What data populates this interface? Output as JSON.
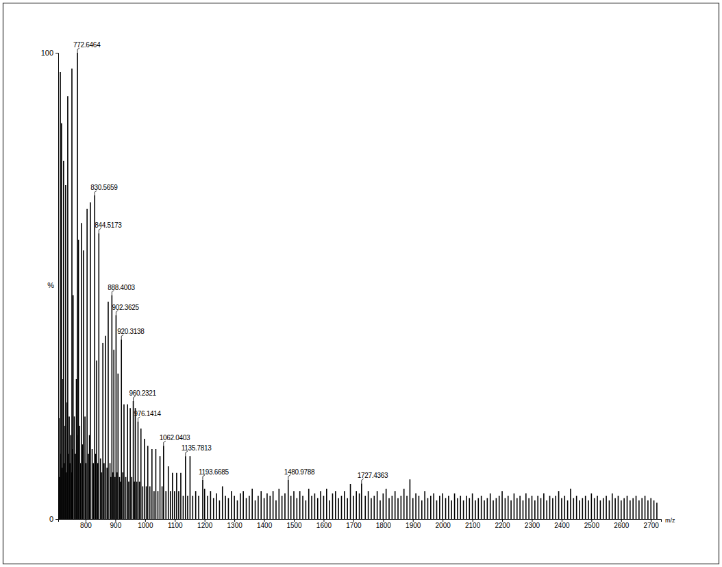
{
  "chart_data": {
    "type": "bar",
    "color": "#000000",
    "xlabel": "m/z",
    "ylabel": "%",
    "xlim": [
      708,
      2734
    ],
    "ylim": [
      0,
      100
    ],
    "xticks": [
      800,
      900,
      1000,
      1100,
      1200,
      1300,
      1400,
      1500,
      1600,
      1700,
      1800,
      1900,
      2000,
      2100,
      2200,
      2300,
      2400,
      2500,
      2600,
      2700
    ],
    "yticks": [
      0,
      100
    ],
    "x": [
      708.5,
      710,
      712,
      715,
      717,
      719,
      722,
      724,
      726,
      729,
      731,
      733,
      736,
      738,
      740,
      743,
      745,
      747,
      750,
      752,
      754,
      756,
      758,
      762,
      766,
      769,
      772.6464,
      774,
      776,
      780,
      783,
      786,
      790,
      793,
      798,
      801,
      805,
      810,
      813,
      816,
      822,
      826,
      830.5659,
      834,
      837,
      841,
      844.5173,
      850,
      854,
      858,
      862,
      867,
      872,
      876,
      882,
      885,
      888.4003,
      892,
      895,
      899,
      902.3625,
      906,
      909,
      914,
      917,
      920.3138,
      925,
      929,
      935,
      941,
      945,
      950,
      955,
      960.2321,
      964,
      967,
      972,
      976.1414,
      981,
      986,
      992,
      998,
      1004,
      1009,
      1016,
      1023,
      1030,
      1036,
      1043,
      1050,
      1057,
      1062.0403,
      1070,
      1078,
      1085,
      1092,
      1099,
      1106,
      1113,
      1120,
      1128,
      1135.7813,
      1143,
      1151,
      1160,
      1170,
      1180,
      1193.6685,
      1200,
      1210,
      1220,
      1230,
      1240,
      1250,
      1260,
      1270,
      1280,
      1290,
      1300,
      1310,
      1320,
      1330,
      1340,
      1350,
      1360,
      1370,
      1380,
      1390,
      1400,
      1410,
      1420,
      1430,
      1440,
      1450,
      1460,
      1470,
      1480.9788,
      1490,
      1500,
      1510,
      1520,
      1530,
      1540,
      1550,
      1560,
      1570,
      1580,
      1590,
      1600,
      1610,
      1620,
      1630,
      1640,
      1650,
      1660,
      1670,
      1680,
      1690,
      1700,
      1710,
      1720,
      1727.4363,
      1740,
      1750,
      1760,
      1770,
      1780,
      1790,
      1800,
      1810,
      1820,
      1830,
      1840,
      1850,
      1860,
      1870,
      1880,
      1890,
      1900,
      1910,
      1920,
      1930,
      1940,
      1950,
      1960,
      1970,
      1980,
      1990,
      2000,
      2010,
      2020,
      2030,
      2040,
      2050,
      2060,
      2070,
      2080,
      2090,
      2100,
      2110,
      2120,
      2130,
      2140,
      2150,
      2160,
      2170,
      2180,
      2190,
      2200,
      2210,
      2220,
      2230,
      2240,
      2250,
      2260,
      2270,
      2280,
      2290,
      2300,
      2310,
      2320,
      2330,
      2340,
      2350,
      2360,
      2370,
      2380,
      2390,
      2400,
      2410,
      2420,
      2430,
      2440,
      2450,
      2460,
      2470,
      2480,
      2490,
      2500,
      2510,
      2520,
      2530,
      2540,
      2550,
      2560,
      2570,
      2580,
      2590,
      2600,
      2610,
      2620,
      2630,
      2640,
      2650,
      2660,
      2670,
      2680,
      2690,
      2700,
      2710,
      2720
    ],
    "values": [
      4,
      21.6,
      9,
      95.9,
      14,
      84.9,
      11,
      30,
      76.8,
      12,
      20,
      71.6,
      10,
      25,
      90.7,
      14,
      22,
      12,
      18,
      10,
      96.6,
      15,
      48,
      22,
      14,
      30,
      100,
      18,
      59.9,
      20,
      12,
      63.5,
      16,
      57.6,
      22,
      12,
      66.5,
      14,
      18,
      67.9,
      15,
      12,
      69.4,
      14,
      34,
      12,
      61.3,
      13,
      10,
      37.8,
      12,
      39.3,
      11,
      46.6,
      12,
      9,
      48,
      10,
      36.3,
      9,
      43.7,
      10,
      31.2,
      9,
      8,
      38.5,
      10,
      24.6,
      9,
      24.6,
      8,
      23.8,
      9,
      25.3,
      8,
      23.8,
      8,
      20.9,
      8,
      19.4,
      7,
      17.2,
      7,
      15.7,
      7,
      15,
      6,
      15,
      6,
      13.5,
      7,
      15.7,
      6,
      11.3,
      6,
      9.9,
      6,
      9.9,
      6,
      9.9,
      5,
      13.5,
      5,
      13.5,
      5,
      6,
      5,
      8.4,
      6.5,
      5,
      6,
      4.5,
      5.5,
      4,
      7,
      5,
      4.5,
      6,
      5,
      4,
      5.5,
      6,
      4.5,
      5,
      6.5,
      4,
      5,
      6,
      4.5,
      5.5,
      5,
      6,
      4,
      6.5,
      5,
      5.5,
      8.4,
      5,
      6,
      4.5,
      6,
      5,
      4,
      6.5,
      5,
      5.5,
      4.5,
      6,
      5,
      6.5,
      4,
      5.5,
      6,
      4.5,
      5,
      6,
      4.5,
      7.5,
      5,
      6,
      5.5,
      7.6,
      5,
      6,
      4.5,
      5,
      6,
      4,
      5.5,
      6.5,
      4.5,
      5,
      6,
      4.5,
      5,
      6.5,
      5,
      8.5,
      4.5,
      5.5,
      5,
      4,
      6,
      4.5,
      5,
      5.5,
      4,
      5,
      5.5,
      4.5,
      5,
      4,
      5.5,
      4.5,
      5,
      4,
      5,
      4.5,
      5.5,
      4,
      4.5,
      5,
      4,
      4.5,
      5.5,
      4,
      4.5,
      5,
      6,
      4.5,
      5,
      4,
      5.5,
      4.5,
      5,
      4,
      5.5,
      4.5,
      5,
      4,
      5,
      4.5,
      5.5,
      4,
      5,
      4.5,
      5,
      6,
      4.5,
      5,
      4,
      6.5,
      4.5,
      5,
      4,
      4.5,
      5,
      4,
      5.5,
      4.5,
      5,
      4,
      4.5,
      5,
      4,
      5.5,
      4.5,
      5,
      4,
      4.5,
      5,
      4,
      4.5,
      5,
      4,
      4.5,
      5,
      4,
      4.5,
      4,
      3.5
    ],
    "annotations": [
      {
        "x": 772.6464,
        "y": 100,
        "text": "772.6464"
      },
      {
        "x": 830.5659,
        "y": 69.4,
        "text": "830.5659"
      },
      {
        "x": 844.5173,
        "y": 61.3,
        "text": "844.5173"
      },
      {
        "x": 888.4003,
        "y": 48,
        "text": "888.4003"
      },
      {
        "x": 902.3625,
        "y": 43.7,
        "text": "902.3625"
      },
      {
        "x": 920.3138,
        "y": 38.5,
        "text": "920.3138"
      },
      {
        "x": 960.2321,
        "y": 25.3,
        "text": "960.2321"
      },
      {
        "x": 976.1414,
        "y": 20.9,
        "text": "976.1414"
      },
      {
        "x": 1062.0403,
        "y": 15.7,
        "text": "1062.0403"
      },
      {
        "x": 1135.7813,
        "y": 13.5,
        "text": "1135.7813"
      },
      {
        "x": 1193.6685,
        "y": 8.4,
        "text": "1193.6685"
      },
      {
        "x": 1480.9788,
        "y": 8.4,
        "text": "1480.9788"
      },
      {
        "x": 1727.4363,
        "y": 7.6,
        "text": "1727.4363"
      }
    ]
  }
}
